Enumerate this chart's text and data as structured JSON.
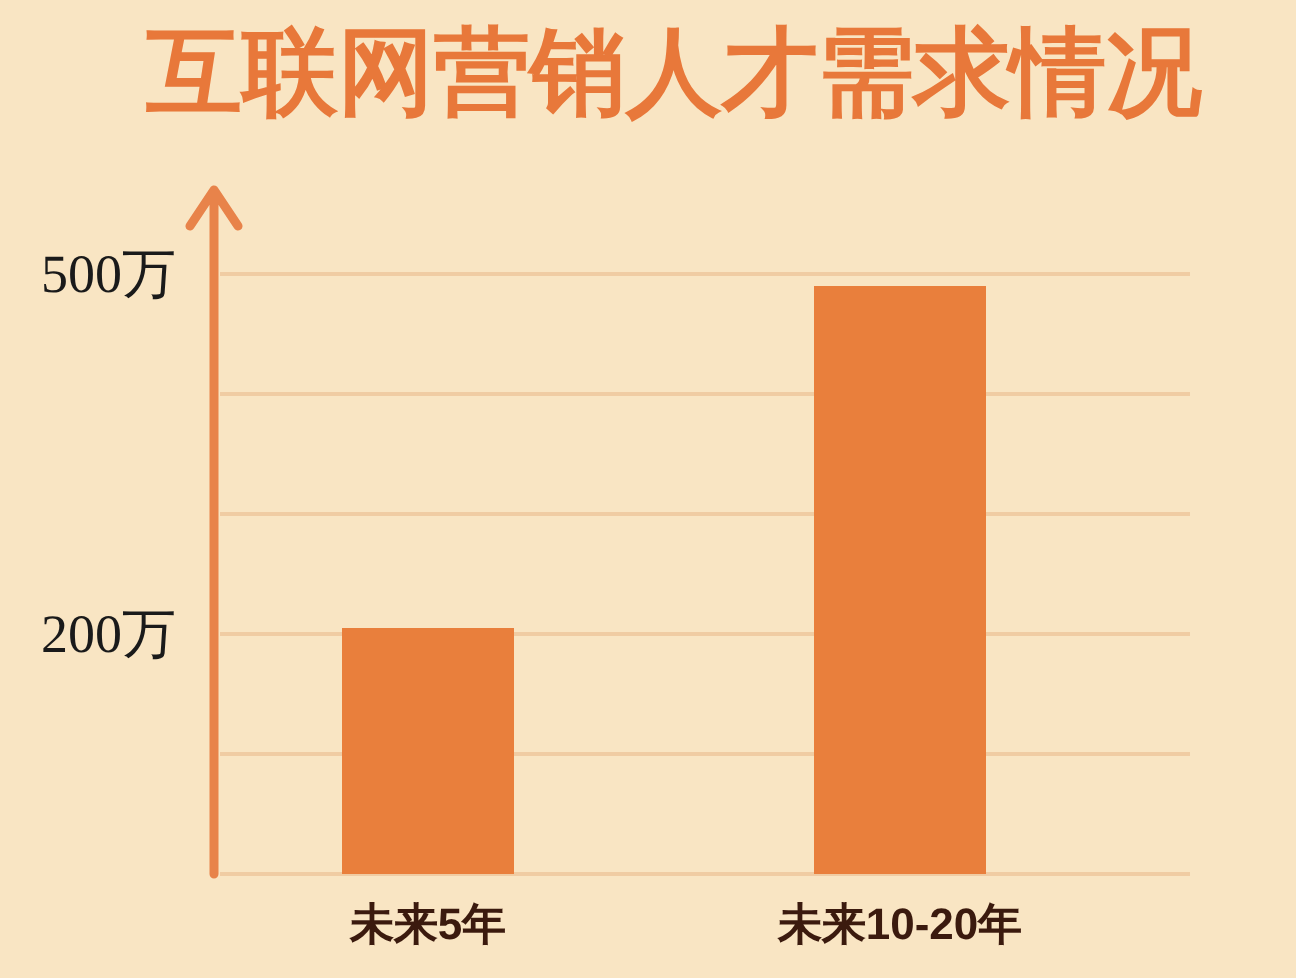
{
  "chart_data": {
    "type": "bar",
    "title": "互联网营销人才需求情况",
    "categories": [
      "未来5年",
      "未来10-20年"
    ],
    "values": [
      205,
      490
    ],
    "color": "#e97f3c",
    "ylim": [
      0,
      570
    ],
    "yticks": [
      {
        "value": 0,
        "label": null
      },
      {
        "value": 100,
        "label": null
      },
      {
        "value": 200,
        "label": "200万"
      },
      {
        "value": 300,
        "label": null
      },
      {
        "value": 400,
        "label": null
      },
      {
        "value": 500,
        "label": "500万"
      }
    ],
    "grid": "y"
  }
}
